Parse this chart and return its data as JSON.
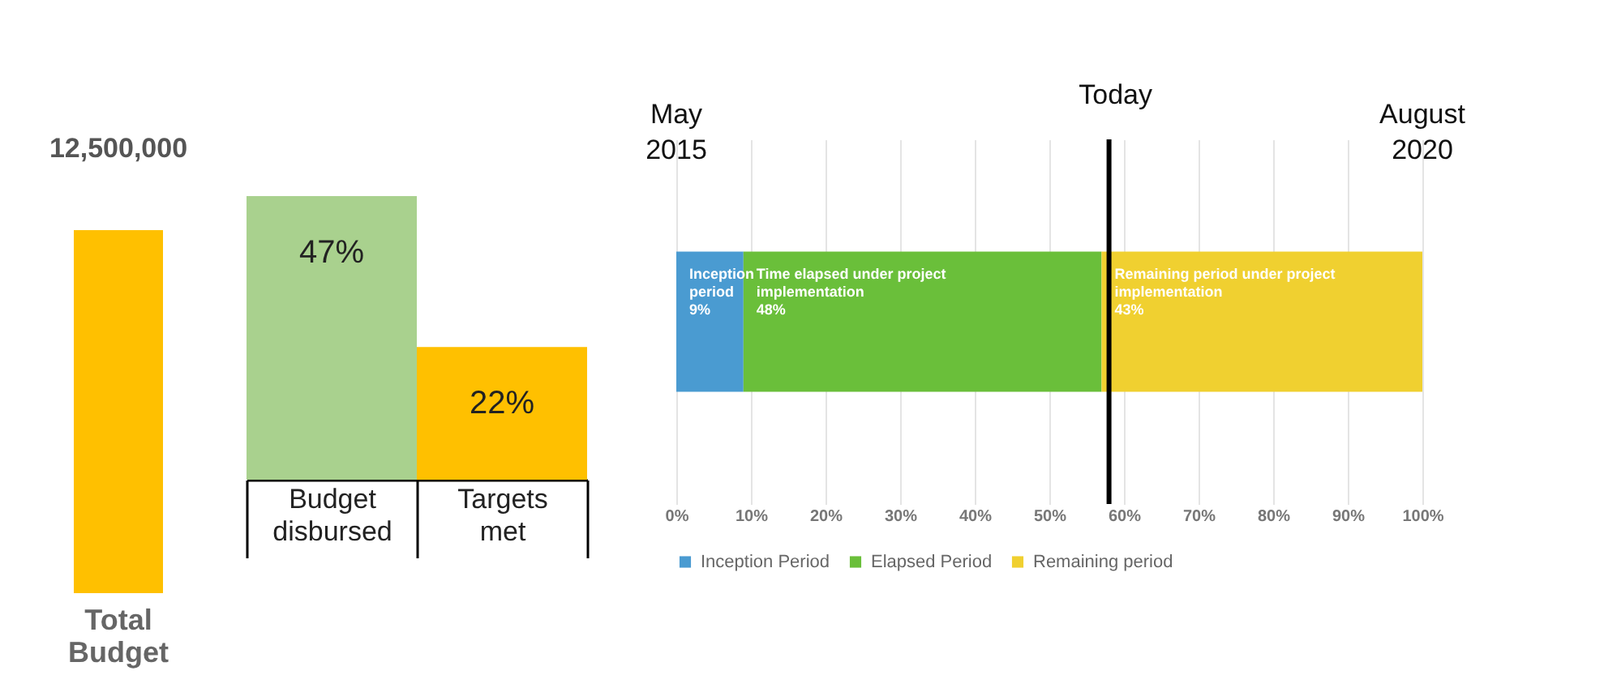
{
  "chart_data": [
    {
      "type": "bar",
      "categories": [
        "Total Budget"
      ],
      "values": [
        12500000
      ],
      "colors": [
        "#ffc000"
      ],
      "value_labels": [
        "12,500,000"
      ],
      "tick_labels": "x"
    },
    {
      "type": "bar",
      "categories": [
        "Budget disbursed",
        "Targets met"
      ],
      "values": [
        47,
        22
      ],
      "colors": [
        "#a9d18e",
        "#ffc000"
      ],
      "value_labels": [
        "47%",
        "22%"
      ],
      "tick_labels": "x"
    },
    {
      "type": "bar",
      "orientation": "horizontal",
      "stacked": true,
      "categories": [
        null
      ],
      "series": [
        {
          "name": "Inception Period",
          "color": "#4a9bd1",
          "values": [
            9
          ],
          "value_labels": [
            "Inception period 9%"
          ]
        },
        {
          "name": "Elapsed Period",
          "color": "#6abf3a",
          "values": [
            48
          ],
          "value_labels": [
            "Time elapsed under project implementation 48%"
          ]
        },
        {
          "name": "Remaining period",
          "color": "#f0d030",
          "values": [
            43
          ],
          "value_labels": [
            "Remaining period under project implementation 43%"
          ]
        }
      ],
      "xlim": [
        0,
        100
      ],
      "xticks": [
        {
          "value": 0,
          "label": "0%"
        },
        {
          "value": 10,
          "label": "10%"
        },
        {
          "value": 20,
          "label": "20%"
        },
        {
          "value": 30,
          "label": "30%"
        },
        {
          "value": 40,
          "label": "40%"
        },
        {
          "value": 50,
          "label": "50%"
        },
        {
          "value": 60,
          "label": "60%"
        },
        {
          "value": 70,
          "label": "70%"
        },
        {
          "value": 80,
          "label": "80%"
        },
        {
          "value": 90,
          "label": "90%"
        },
        {
          "value": 100,
          "label": "100%"
        }
      ],
      "ref_lines": [
        {
          "axis": "x",
          "value": 58,
          "label": "Today",
          "color": "#000000"
        }
      ],
      "annotations": [
        "May 2015",
        "August 2020"
      ],
      "grid": "x",
      "legend": "bottom"
    }
  ]
}
